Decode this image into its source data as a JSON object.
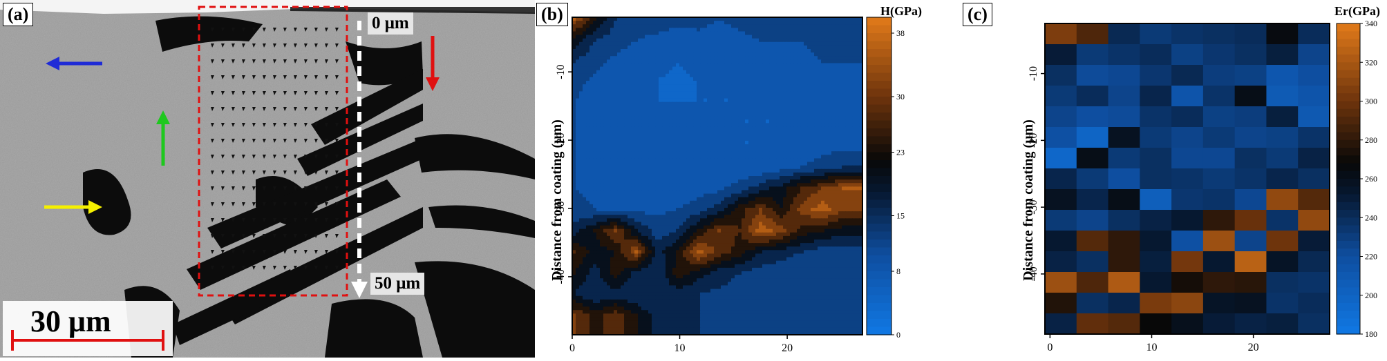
{
  "panel_a": {
    "label": "(a)",
    "scale_bar_text": "30 μm",
    "depth_start_label": "0 μm",
    "depth_end_label": "50 μm",
    "arrow_colors": {
      "blue": "#1f2bd6",
      "green": "#1ec81e",
      "yellow": "#f5f000",
      "red": "#e01010",
      "box": "#e01010"
    }
  },
  "chart_data": [
    {
      "type": "heatmap",
      "subtype": "filled-contour",
      "panel_label": "(b)",
      "colorbar_title": "H(GPa)",
      "ylabel": "Distance from coating (μm)",
      "xlabel": "",
      "x_ticks": [
        0,
        10,
        20
      ],
      "y_ticks": [
        -10,
        -20,
        -30,
        -40
      ],
      "xlim": [
        0,
        27
      ],
      "ylim": [
        -48.5,
        -2
      ],
      "colorbar_ticks": [
        0,
        8,
        15,
        23,
        30,
        38
      ],
      "colorbar_range": [
        0,
        40
      ],
      "x": [
        1,
        3,
        5,
        7,
        9,
        11,
        13,
        15,
        17,
        19,
        21,
        23,
        25,
        27
      ],
      "y": [
        -4,
        -7,
        -10,
        -13,
        -16,
        -19,
        -22,
        -25,
        -28,
        -31,
        -34,
        -37,
        -40,
        -43,
        -46
      ],
      "values": [
        [
          34,
          22,
          14,
          12,
          12,
          11,
          11,
          10,
          11,
          12,
          11,
          11,
          12,
          12
        ],
        [
          20,
          14,
          12,
          10,
          9,
          8,
          9,
          8,
          9,
          10,
          10,
          10,
          11,
          11
        ],
        [
          14,
          11,
          9,
          7,
          7,
          6,
          7,
          7,
          7,
          8,
          9,
          9,
          10,
          10
        ],
        [
          11,
          9,
          7,
          6,
          6,
          5,
          6,
          6,
          6,
          6,
          7,
          8,
          9,
          9
        ],
        [
          10,
          8,
          7,
          6,
          6,
          6,
          6,
          6,
          6,
          6,
          6,
          7,
          8,
          8
        ],
        [
          10,
          8,
          7,
          6,
          6,
          6,
          6,
          6,
          6,
          6,
          6,
          6,
          7,
          8
        ],
        [
          10,
          8,
          7,
          6,
          6,
          6,
          6,
          6,
          6,
          6,
          7,
          7,
          8,
          9
        ],
        [
          10,
          8,
          7,
          7,
          6,
          6,
          6,
          6,
          6,
          7,
          8,
          10,
          12,
          14
        ],
        [
          10,
          9,
          8,
          8,
          7,
          7,
          8,
          9,
          12,
          16,
          20,
          26,
          30,
          34
        ],
        [
          11,
          10,
          9,
          9,
          9,
          10,
          12,
          16,
          24,
          30,
          22,
          32,
          36,
          30
        ],
        [
          16,
          22,
          30,
          18,
          12,
          14,
          22,
          30,
          26,
          36,
          32,
          24,
          22,
          20
        ],
        [
          26,
          20,
          22,
          34,
          16,
          22,
          36,
          28,
          24,
          18,
          16,
          14,
          12,
          12
        ],
        [
          22,
          16,
          24,
          16,
          14,
          24,
          20,
          16,
          14,
          12,
          11,
          10,
          10,
          10
        ],
        [
          18,
          14,
          16,
          14,
          14,
          16,
          14,
          13,
          12,
          11,
          10,
          10,
          10,
          10
        ],
        [
          30,
          24,
          28,
          22,
          16,
          16,
          14,
          13,
          12,
          11,
          10,
          10,
          10,
          10
        ]
      ]
    },
    {
      "type": "heatmap",
      "panel_label": "(c)",
      "colorbar_title": "Er(GPa)",
      "ylabel": "Distance from coating (μm)",
      "xlabel": "",
      "x_ticks": [
        0,
        10,
        20
      ],
      "y_ticks": [
        -10,
        -20,
        -30,
        -40
      ],
      "xlim": [
        -0.5,
        27.5
      ],
      "ylim": [
        -49,
        -2.5
      ],
      "colorbar_ticks": [
        180,
        200,
        220,
        240,
        260,
        280,
        300,
        320,
        340
      ],
      "colorbar_range": [
        180,
        340
      ],
      "x": [
        1,
        4,
        7,
        10,
        13,
        16,
        19,
        22,
        25
      ],
      "y": [
        -4,
        -7,
        -10,
        -13,
        -16,
        -19,
        -22,
        -25,
        -28,
        -31,
        -34,
        -37,
        -40,
        -43,
        -46
      ],
      "values": [
        [
          305,
          290,
          242,
          232,
          236,
          238,
          240,
          265,
          240
        ],
        [
          250,
          232,
          236,
          240,
          228,
          234,
          238,
          248,
          226
        ],
        [
          238,
          222,
          224,
          234,
          242,
          230,
          228,
          212,
          220
        ],
        [
          232,
          240,
          226,
          244,
          214,
          236,
          262,
          208,
          214
        ],
        [
          226,
          220,
          222,
          236,
          240,
          228,
          230,
          248,
          210
        ],
        [
          218,
          198,
          258,
          232,
          226,
          232,
          226,
          228,
          236
        ],
        [
          196,
          262,
          232,
          238,
          224,
          224,
          238,
          232,
          246
        ],
        [
          244,
          232,
          220,
          238,
          236,
          232,
          236,
          244,
          238
        ],
        [
          258,
          244,
          262,
          204,
          234,
          236,
          224,
          312,
          292
        ],
        [
          232,
          226,
          238,
          246,
          252,
          280,
          298,
          236,
          312
        ],
        [
          252,
          292,
          280,
          252,
          218,
          316,
          226,
          300,
          250
        ],
        [
          246,
          238,
          280,
          248,
          302,
          252,
          326,
          256,
          242
        ],
        [
          316,
          290,
          322,
          252,
          272,
          280,
          278,
          238,
          236
        ],
        [
          276,
          238,
          244,
          304,
          310,
          256,
          258,
          236,
          240
        ],
        [
          246,
          296,
          292,
          268,
          260,
          250,
          246,
          248,
          238
        ]
      ]
    }
  ]
}
